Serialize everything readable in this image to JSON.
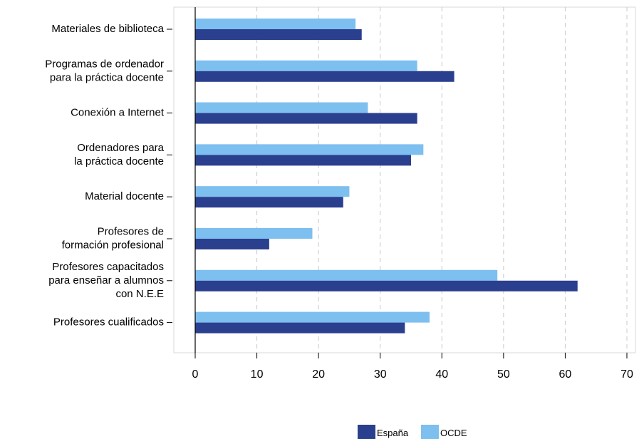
{
  "chart_data": {
    "type": "bar",
    "orientation": "horizontal",
    "categories": [
      [
        "Materiales de biblioteca"
      ],
      [
        "Programas de ordenador",
        "para la práctica docente"
      ],
      [
        "Conexión a Internet"
      ],
      [
        "Ordenadores para",
        "la práctica docente"
      ],
      [
        "Material docente"
      ],
      [
        "Profesores de",
        "formación profesional"
      ],
      [
        "Profesores capacitados",
        "para enseñar a alumnos",
        "con N.E.E"
      ],
      [
        "Profesores cualificados"
      ]
    ],
    "series": [
      {
        "name": "España",
        "color": "#2b3f8f",
        "values": [
          27,
          42,
          36,
          35,
          24,
          12,
          62,
          34
        ]
      },
      {
        "name": "OCDE",
        "color": "#7dbfef",
        "values": [
          26,
          36,
          28,
          37,
          25,
          19,
          49,
          38
        ]
      }
    ],
    "xlim": [
      0,
      70
    ],
    "xticks": [
      "0",
      "10",
      "20",
      "30",
      "40",
      "50",
      "60",
      "70"
    ],
    "grid": "vertical dashed",
    "legend_position": "bottom-center",
    "title": "",
    "xlabel": "",
    "ylabel": ""
  }
}
